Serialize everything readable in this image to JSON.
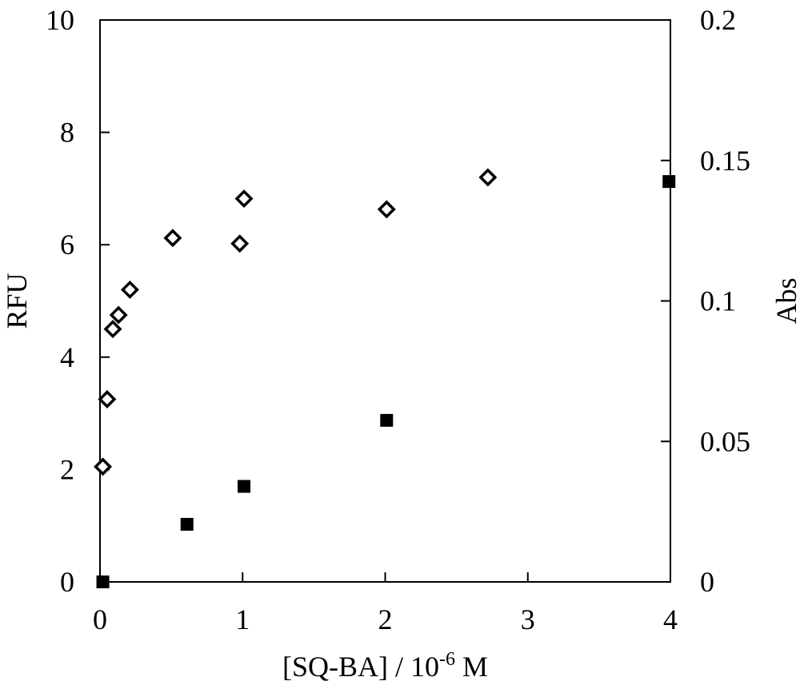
{
  "chart_data": {
    "type": "scatter",
    "title": "",
    "xlabel": {
      "prefix": "[SQ-BA] / 10",
      "superscript": "-6",
      "suffix": " M"
    },
    "ylabel": "RFU",
    "y2label": "Abs",
    "xlim": [
      0,
      4
    ],
    "ylim": [
      0,
      10
    ],
    "y2lim": [
      0,
      0.2
    ],
    "xticks": [
      "0",
      "1",
      "2",
      "3",
      "4"
    ],
    "yticks": [
      "0",
      "2",
      "4",
      "6",
      "8",
      "10"
    ],
    "y2ticks": [
      "0",
      "0.05",
      "0.1",
      "0.15",
      "0.2"
    ],
    "grid": false,
    "legend": "none",
    "series": [
      {
        "axis": "left",
        "marker": "open-diamond",
        "color": "#000000",
        "x": [
          0.02,
          0.05,
          0.09,
          0.13,
          0.21,
          0.51,
          0.98,
          1.01,
          2.01,
          2.72
        ],
        "y": [
          2.05,
          3.25,
          4.5,
          4.75,
          5.2,
          6.12,
          6.02,
          6.82,
          6.63,
          7.2
        ]
      },
      {
        "axis": "right",
        "marker": "filled-square",
        "color": "#000000",
        "x": [
          0.02,
          0.61,
          1.01,
          2.01,
          3.99
        ],
        "y": [
          0.0,
          0.0205,
          0.034,
          0.0575,
          0.1425
        ]
      }
    ]
  }
}
